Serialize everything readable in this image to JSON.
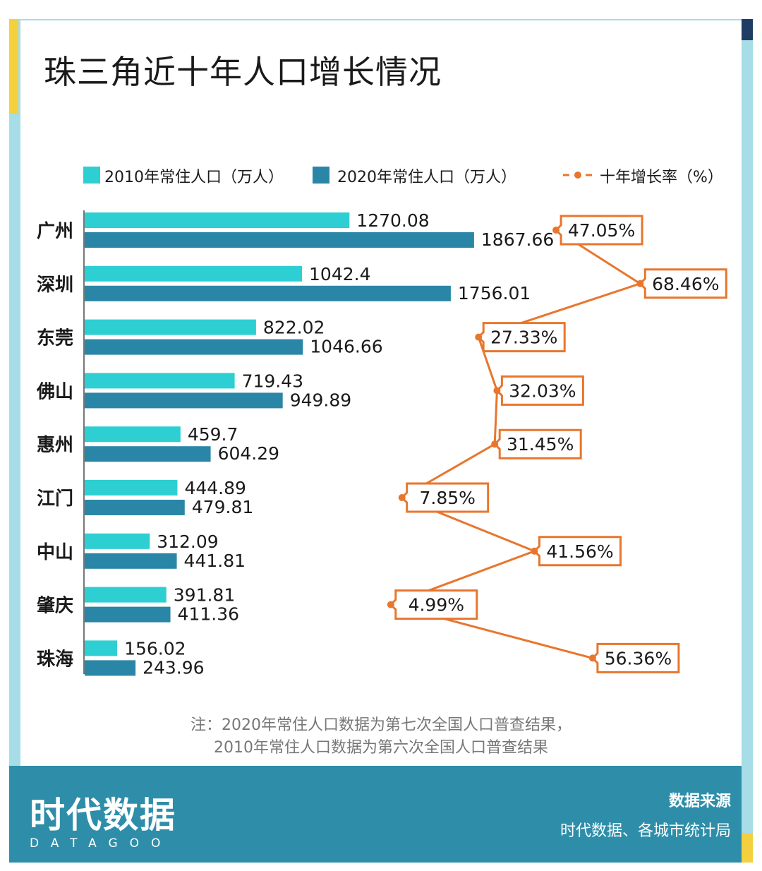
{
  "colors": {
    "bar_2010": "#2ecfd3",
    "bar_2020": "#2a86a6",
    "growth": "#e8762d",
    "frame": "#a6dde6",
    "footer": "#2e8ea9"
  },
  "title": "珠三角近十年人口增长情况",
  "legend": {
    "s2010": "2010年常住人口（万人）",
    "s2020": "2020年常住人口（万人）",
    "growth": "十年增长率（%）"
  },
  "chart_data": {
    "type": "bar",
    "orientation": "horizontal",
    "title": "珠三角近十年人口增长情况",
    "categories": [
      "广州",
      "深圳",
      "东莞",
      "佛山",
      "惠州",
      "江门",
      "中山",
      "肇庆",
      "珠海"
    ],
    "series": [
      {
        "name": "2010年常住人口（万人）",
        "values": [
          1270.08,
          1042.4,
          822.02,
          719.43,
          459.7,
          444.89,
          312.09,
          391.81,
          156.02
        ]
      },
      {
        "name": "2020年常住人口（万人）",
        "values": [
          1867.66,
          1756.01,
          1046.66,
          949.89,
          604.29,
          479.81,
          441.81,
          411.36,
          243.96
        ]
      },
      {
        "name": "十年增长率（%）",
        "type": "line",
        "values": [
          47.05,
          68.46,
          27.33,
          32.03,
          31.45,
          7.85,
          41.56,
          4.99,
          56.36
        ]
      }
    ],
    "value_labels_2010": [
      "1270.08",
      "1042.4",
      "822.02",
      "719.43",
      "459.7",
      "444.89",
      "312.09",
      "391.81",
      "156.02"
    ],
    "value_labels_2020": [
      "1867.66",
      "1756.01",
      "1046.66",
      "949.89",
      "604.29",
      "479.81",
      "441.81",
      "411.36",
      "243.96"
    ],
    "growth_labels": [
      "47.05%",
      "68.46%",
      "27.33%",
      "32.03%",
      "31.45%",
      "7.85%",
      "41.56%",
      "4.99%",
      "56.36%"
    ],
    "legend_position": "top",
    "grid": false
  },
  "note": {
    "line1": "注：2020年常住人口数据为第七次全国人口普查结果，",
    "line2": "2010年常住人口数据为第六次全国人口普查结果"
  },
  "brand": {
    "name": "时代数据",
    "sub": "DATAGOO"
  },
  "source": {
    "label": "数据来源",
    "value": "时代数据、各城市统计局"
  }
}
